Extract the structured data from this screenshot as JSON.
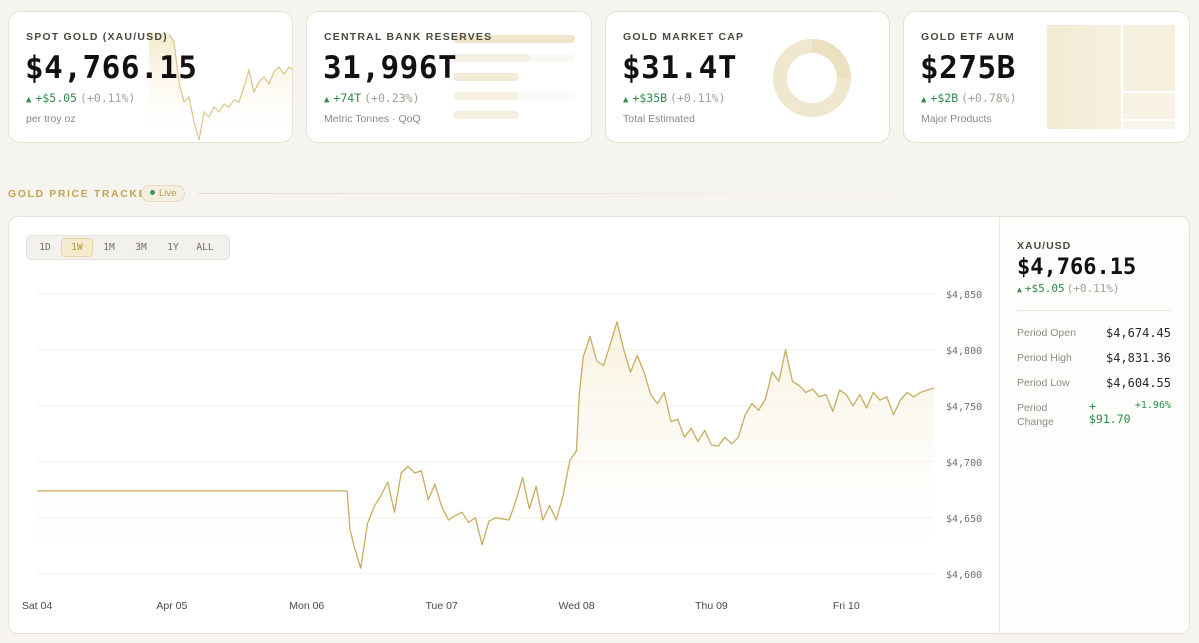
{
  "cards": [
    {
      "label": "SPOT GOLD (XAU/USD)",
      "value": "$4,766.15",
      "delta": "+$5.05",
      "pct": "(+0.11%)",
      "sub": "per troy oz"
    },
    {
      "label": "CENTRAL BANK RESERVES",
      "value": "31,996T",
      "delta": "+74T",
      "pct": "(+0.23%)",
      "sub": "Metric Tonnes · QoQ"
    },
    {
      "label": "GOLD MARKET CAP",
      "value": "$31.4T",
      "delta": "+$35B",
      "pct": "(+0.11%)",
      "sub": "Total Estimated"
    },
    {
      "label": "GOLD ETF AUM",
      "value": "$275B",
      "delta": "+$2B",
      "pct": "(+0.78%)",
      "sub": "Major Products"
    }
  ],
  "section": {
    "title": "GOLD PRICE TRACKER",
    "badge": "Live"
  },
  "ranges": [
    "1D",
    "1W",
    "1M",
    "3M",
    "1Y",
    "ALL"
  ],
  "active_range": "1W",
  "side": {
    "pair": "XAU/USD",
    "price": "$4,766.15",
    "change": "+$5.05",
    "change_pct": "(+0.11%)",
    "stats": [
      {
        "label": "Period Open",
        "value": "$4,674.45"
      },
      {
        "label": "Period High",
        "value": "$4,831.36"
      },
      {
        "label": "Period Low",
        "value": "$4,604.55"
      }
    ],
    "period_change": {
      "label": "Period Change",
      "value": "+ $91.70",
      "pct": "+1.96%"
    }
  },
  "colors": {
    "accent": "#c9ac62",
    "up": "#2f8a4a",
    "fill": "#f7efd9"
  },
  "chart_data": {
    "type": "line",
    "title": "",
    "xlabel": "",
    "ylabel": "",
    "x_ticks": [
      "Sat 04",
      "Apr 05",
      "Mon 06",
      "Tue 07",
      "Wed 08",
      "Thu 09",
      "Fri 10"
    ],
    "y_ticks": [
      4600,
      4650,
      4700,
      4750,
      4800,
      4850
    ],
    "y_tick_labels": [
      "$4,600",
      "$4,650",
      "$4,700",
      "$4,750",
      "$4,800",
      "$4,850"
    ],
    "ylim": [
      4590,
      4865
    ],
    "xlim": [
      0,
      6.65
    ],
    "grid": true,
    "series": [
      {
        "x": [
          0,
          2.3,
          2.32,
          2.35,
          2.4,
          2.45,
          2.5,
          2.55,
          2.6,
          2.65,
          2.7,
          2.75,
          2.8,
          2.85,
          2.9,
          2.95,
          3.0,
          3.05,
          3.1,
          3.15,
          3.2,
          3.25,
          3.3,
          3.35,
          3.4,
          3.45,
          3.5,
          3.55,
          3.6,
          3.65,
          3.7,
          3.75,
          3.8,
          3.85,
          3.9,
          3.95,
          4.0,
          4.02,
          4.05,
          4.1,
          4.15,
          4.2,
          4.25,
          4.3,
          4.35,
          4.4,
          4.45,
          4.5,
          4.55,
          4.6,
          4.65,
          4.7,
          4.75,
          4.8,
          4.85,
          4.9,
          4.95,
          5.0,
          5.05,
          5.1,
          5.15,
          5.2,
          5.25,
          5.3,
          5.35,
          5.4,
          5.45,
          5.5,
          5.55,
          5.6,
          5.65,
          5.7,
          5.75,
          5.8,
          5.85,
          5.9,
          5.95,
          6.0,
          6.05,
          6.1,
          6.15,
          6.2,
          6.25,
          6.3,
          6.35,
          6.4,
          6.45,
          6.5,
          6.55,
          6.6,
          6.65
        ],
        "y": [
          4674,
          4674,
          4640,
          4625,
          4605,
          4645,
          4660,
          4670,
          4682,
          4655,
          4690,
          4696,
          4690,
          4692,
          4666,
          4680,
          4660,
          4648,
          4652,
          4655,
          4646,
          4650,
          4626,
          4647,
          4650,
          4649,
          4648,
          4665,
          4686,
          4658,
          4678,
          4648,
          4661,
          4648,
          4670,
          4701,
          4710,
          4760,
          4794,
          4812,
          4790,
          4786,
          4805,
          4825,
          4800,
          4780,
          4795,
          4780,
          4760,
          4752,
          4762,
          4736,
          4738,
          4722,
          4730,
          4718,
          4728,
          4715,
          4714,
          4722,
          4716,
          4722,
          4742,
          4752,
          4746,
          4756,
          4780,
          4772,
          4800,
          4772,
          4768,
          4762,
          4765,
          4758,
          4760,
          4745,
          4764,
          4760,
          4750,
          4760,
          4748,
          4762,
          4755,
          4758,
          4742,
          4755,
          4762,
          4758,
          4762,
          4764,
          4766
        ]
      }
    ]
  }
}
